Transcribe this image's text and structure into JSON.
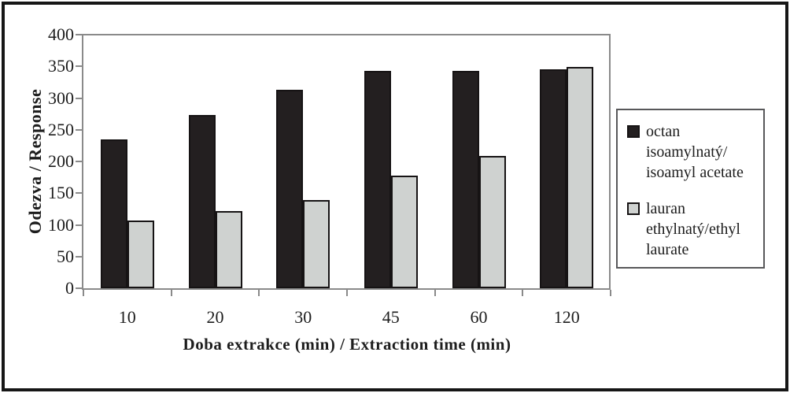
{
  "chart_data": {
    "type": "bar",
    "categories": [
      "10",
      "20",
      "30",
      "45",
      "60",
      "120"
    ],
    "series": [
      {
        "name": "octan isoamylnatý/isoamyl acetate",
        "legend_lines": [
          "octan",
          "isoamylnatý/",
          "isoamyl acetate"
        ],
        "color": "#231f20",
        "values": [
          235,
          273,
          313,
          343,
          343,
          345
        ]
      },
      {
        "name": "lauran ethylnatý/ethyl laurate",
        "legend_lines": [
          "lauran",
          "ethylnatý/ethyl",
          "laurate"
        ],
        "color": "#cfd2d0",
        "values": [
          107,
          122,
          139,
          178,
          209,
          349
        ]
      }
    ],
    "title": "",
    "xlabel": "Doba extrakce (min) / Extraction time (min)",
    "ylabel": "Odezva / Response",
    "ylim": [
      0,
      400
    ],
    "yticks": [
      400,
      350,
      300,
      250,
      200,
      150,
      100,
      50,
      0
    ],
    "grid": false,
    "legend_position": "right"
  },
  "colors": {
    "axis_line": "#8a8a8a",
    "bar_border": "#161314",
    "series1_fill": "#231f20",
    "series2_fill": "#cfd2d0",
    "outer_frame": "#161616",
    "legend_border": "#58585a",
    "text": "#1d1d1d"
  }
}
